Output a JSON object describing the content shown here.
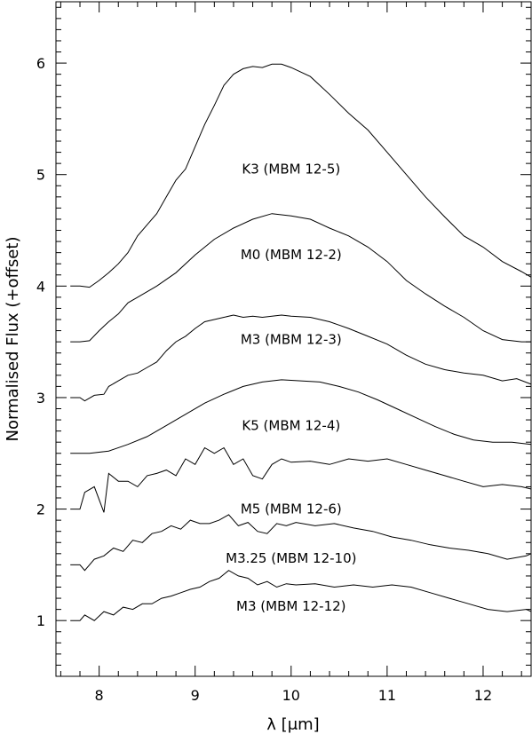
{
  "chart_data": {
    "type": "line",
    "title": "",
    "xlabel": "λ [μm]",
    "ylabel": "Normalised Flux (+offset)",
    "xlim": [
      7.55,
      12.5
    ],
    "ylim": [
      0.5,
      6.55
    ],
    "x_ticks": [
      "8",
      "9",
      "10",
      "11",
      "12"
    ],
    "y_ticks": [
      "1",
      "2",
      "3",
      "4",
      "5",
      "6"
    ],
    "grid": false,
    "legend": "none",
    "series": [
      {
        "name": "K3 (MBM 12-5)",
        "label_pos": [
          10.0,
          5.01
        ],
        "x": [
          7.7,
          7.8,
          7.9,
          8.0,
          8.1,
          8.2,
          8.3,
          8.4,
          8.5,
          8.6,
          8.7,
          8.8,
          8.9,
          9.0,
          9.1,
          9.2,
          9.3,
          9.4,
          9.5,
          9.6,
          9.7,
          9.8,
          9.9,
          10.0,
          10.2,
          10.4,
          10.6,
          10.8,
          11.0,
          11.2,
          11.4,
          11.6,
          11.8,
          12.0,
          12.2,
          12.4,
          12.5
        ],
        "y": [
          4.0,
          4.0,
          3.99,
          4.05,
          4.12,
          4.2,
          4.3,
          4.45,
          4.55,
          4.65,
          4.8,
          4.95,
          5.05,
          5.25,
          5.45,
          5.62,
          5.8,
          5.9,
          5.95,
          5.97,
          5.96,
          5.99,
          5.99,
          5.96,
          5.88,
          5.72,
          5.55,
          5.4,
          5.2,
          5.0,
          4.8,
          4.62,
          4.45,
          4.35,
          4.22,
          4.13,
          4.08
        ]
      },
      {
        "name": "M0 (MBM 12-2)",
        "label_pos": [
          10.0,
          4.24
        ],
        "x": [
          7.7,
          7.8,
          7.9,
          8.0,
          8.1,
          8.2,
          8.3,
          8.4,
          8.6,
          8.8,
          9.0,
          9.2,
          9.4,
          9.6,
          9.8,
          10.0,
          10.2,
          10.4,
          10.6,
          10.8,
          11.0,
          11.2,
          11.4,
          11.6,
          11.8,
          12.0,
          12.2,
          12.4,
          12.5
        ],
        "y": [
          3.5,
          3.5,
          3.51,
          3.6,
          3.68,
          3.75,
          3.85,
          3.9,
          4.0,
          4.12,
          4.28,
          4.42,
          4.52,
          4.6,
          4.65,
          4.63,
          4.6,
          4.52,
          4.45,
          4.35,
          4.22,
          4.05,
          3.93,
          3.82,
          3.72,
          3.6,
          3.52,
          3.5,
          3.5
        ]
      },
      {
        "name": "M3 (MBM 12-3)",
        "label_pos": [
          10.0,
          3.48
        ],
        "x": [
          7.7,
          7.8,
          7.85,
          7.95,
          8.05,
          8.1,
          8.2,
          8.3,
          8.4,
          8.5,
          8.6,
          8.7,
          8.8,
          8.9,
          9.0,
          9.1,
          9.2,
          9.3,
          9.4,
          9.5,
          9.6,
          9.7,
          9.8,
          9.9,
          10.0,
          10.2,
          10.4,
          10.6,
          10.8,
          11.0,
          11.2,
          11.4,
          11.6,
          11.8,
          12.0,
          12.2,
          12.35,
          12.5
        ],
        "y": [
          3.0,
          3.0,
          2.97,
          3.02,
          3.03,
          3.1,
          3.15,
          3.2,
          3.22,
          3.27,
          3.32,
          3.42,
          3.5,
          3.55,
          3.62,
          3.68,
          3.7,
          3.72,
          3.74,
          3.72,
          3.73,
          3.72,
          3.73,
          3.74,
          3.73,
          3.72,
          3.68,
          3.62,
          3.55,
          3.48,
          3.38,
          3.3,
          3.25,
          3.22,
          3.2,
          3.15,
          3.17,
          3.12
        ]
      },
      {
        "name": "K5 (MBM 12-4)",
        "label_pos": [
          10.0,
          2.71
        ],
        "x": [
          7.7,
          7.9,
          8.1,
          8.3,
          8.5,
          8.7,
          8.9,
          9.1,
          9.3,
          9.5,
          9.7,
          9.9,
          10.1,
          10.3,
          10.5,
          10.7,
          10.9,
          11.1,
          11.3,
          11.5,
          11.7,
          11.9,
          12.1,
          12.3,
          12.5
        ],
        "y": [
          2.5,
          2.5,
          2.52,
          2.58,
          2.65,
          2.75,
          2.85,
          2.95,
          3.03,
          3.1,
          3.14,
          3.16,
          3.15,
          3.14,
          3.1,
          3.05,
          2.98,
          2.9,
          2.82,
          2.74,
          2.67,
          2.62,
          2.6,
          2.6,
          2.58
        ]
      },
      {
        "name": "M5 (MBM 12-6)",
        "label_pos": [
          10.0,
          1.96
        ],
        "x": [
          7.7,
          7.8,
          7.85,
          7.95,
          8.05,
          8.1,
          8.2,
          8.3,
          8.4,
          8.5,
          8.6,
          8.7,
          8.8,
          8.9,
          9.0,
          9.1,
          9.2,
          9.3,
          9.4,
          9.5,
          9.6,
          9.7,
          9.8,
          9.9,
          10.0,
          10.2,
          10.4,
          10.6,
          10.8,
          11.0,
          11.2,
          11.4,
          11.6,
          11.8,
          12.0,
          12.2,
          12.4,
          12.5
        ],
        "y": [
          2.0,
          2.0,
          2.15,
          2.2,
          1.97,
          2.32,
          2.25,
          2.25,
          2.2,
          2.3,
          2.32,
          2.35,
          2.3,
          2.45,
          2.4,
          2.55,
          2.5,
          2.55,
          2.4,
          2.45,
          2.3,
          2.27,
          2.4,
          2.45,
          2.42,
          2.43,
          2.4,
          2.45,
          2.43,
          2.45,
          2.4,
          2.35,
          2.3,
          2.25,
          2.2,
          2.22,
          2.2,
          2.18
        ]
      },
      {
        "name": "M3.25 (MBM 12-10)",
        "label_pos": [
          10.0,
          1.52
        ],
        "x": [
          7.7,
          7.8,
          7.85,
          7.95,
          8.05,
          8.15,
          8.25,
          8.35,
          8.45,
          8.55,
          8.65,
          8.75,
          8.85,
          8.95,
          9.05,
          9.15,
          9.25,
          9.35,
          9.45,
          9.55,
          9.65,
          9.75,
          9.85,
          9.95,
          10.05,
          10.25,
          10.45,
          10.65,
          10.85,
          11.05,
          11.25,
          11.45,
          11.65,
          11.85,
          12.05,
          12.25,
          12.45,
          12.5
        ],
        "y": [
          1.5,
          1.5,
          1.45,
          1.55,
          1.58,
          1.65,
          1.62,
          1.72,
          1.7,
          1.78,
          1.8,
          1.85,
          1.82,
          1.9,
          1.87,
          1.87,
          1.9,
          1.95,
          1.85,
          1.88,
          1.8,
          1.78,
          1.87,
          1.85,
          1.88,
          1.85,
          1.87,
          1.83,
          1.8,
          1.75,
          1.72,
          1.68,
          1.65,
          1.63,
          1.6,
          1.55,
          1.58,
          1.6
        ]
      },
      {
        "name": "M3 (MBM 12-12)",
        "label_pos": [
          10.0,
          1.09
        ],
        "x": [
          7.7,
          7.8,
          7.85,
          7.95,
          8.05,
          8.15,
          8.25,
          8.35,
          8.45,
          8.55,
          8.65,
          8.75,
          8.85,
          8.95,
          9.05,
          9.15,
          9.25,
          9.35,
          9.45,
          9.55,
          9.65,
          9.75,
          9.85,
          9.95,
          10.05,
          10.25,
          10.45,
          10.65,
          10.85,
          11.05,
          11.25,
          11.45,
          11.65,
          11.85,
          12.05,
          12.25,
          12.45,
          12.5
        ],
        "y": [
          1.0,
          1.0,
          1.05,
          1.0,
          1.08,
          1.05,
          1.12,
          1.1,
          1.15,
          1.15,
          1.2,
          1.22,
          1.25,
          1.28,
          1.3,
          1.35,
          1.38,
          1.45,
          1.4,
          1.38,
          1.32,
          1.35,
          1.3,
          1.33,
          1.32,
          1.33,
          1.3,
          1.32,
          1.3,
          1.32,
          1.3,
          1.25,
          1.2,
          1.15,
          1.1,
          1.08,
          1.1,
          1.08
        ]
      }
    ]
  }
}
